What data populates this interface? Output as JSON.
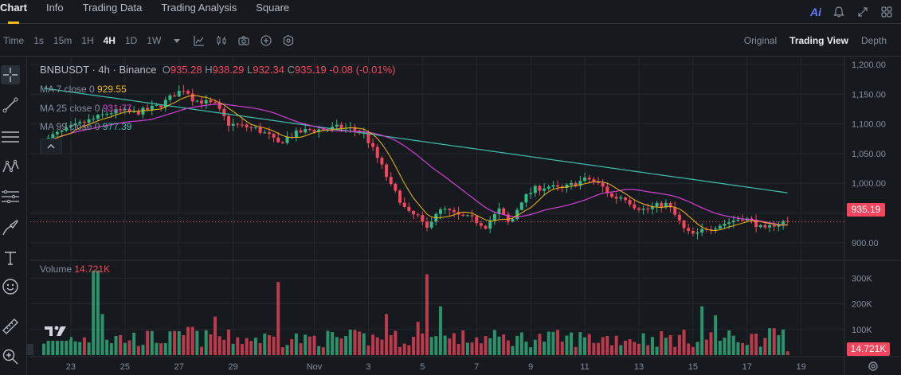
{
  "tabs": [
    "Chart",
    "Info",
    "Trading Data",
    "Trading Analysis",
    "Square"
  ],
  "active_tab": "Chart",
  "top_icons": {
    "ai_label": "Ai"
  },
  "toolbar": {
    "time_label": "Time",
    "intervals": [
      "1s",
      "15m",
      "1H",
      "4H",
      "1D",
      "1W"
    ],
    "active_interval": "4H",
    "views": [
      "Original",
      "Trading View",
      "Depth"
    ],
    "active_view": "Trading View"
  },
  "legend": {
    "symbol": "BNBUSDT · 4h · Binance",
    "open_key": "O",
    "open": "935.28",
    "high_key": "H",
    "high": "938.29",
    "low_key": "L",
    "low": "932.34",
    "close_key": "C",
    "close": "935.19",
    "change": "-0.08 (-0.01%)",
    "ma7_label": "MA 7 close 0",
    "ma7_value": "929.55",
    "ma25_label": "MA 25 close 0",
    "ma25_value": "931.77",
    "ma99_label": "MA 99 close 0",
    "ma99_value": "977.39",
    "volume_label": "Volume",
    "volume_value": "14.721K"
  },
  "colors": {
    "up": "#2ebd85",
    "down": "#f6465d",
    "ma7": "#f0b90b",
    "ma25": "#d63ed6",
    "ma99": "#3fbfb0",
    "grid": "#232830",
    "axis_text": "#848e9c"
  },
  "current_price_label": "935.19",
  "current_volume_label": "14.721K",
  "chart_data": {
    "type": "candlestick",
    "title": "BNBUSDT · 4h · Binance",
    "price_axis": {
      "ticks": [
        1200,
        1150,
        1100,
        1050,
        1000,
        950,
        900
      ],
      "tick_labels": [
        "1,200.00",
        "1,150.00",
        "1,100.00",
        "1,050.00",
        "1,000.00",
        "950.00",
        "900.00"
      ],
      "range": [
        873,
        1212
      ]
    },
    "volume_axis": {
      "ticks": [
        300000,
        200000,
        100000
      ],
      "tick_labels": [
        "300K",
        "200K",
        "100K"
      ],
      "range": [
        0,
        360000
      ]
    },
    "x_axis": {
      "labels": [
        "23",
        "25",
        "27",
        "29",
        "Nov",
        "3",
        "5",
        "7",
        "9",
        "11",
        "13",
        "15",
        "17",
        "19"
      ],
      "label_days": [
        -9,
        -7,
        -5,
        -3,
        0,
        2,
        4,
        6,
        8,
        10,
        12,
        14,
        16,
        18
      ],
      "range_days": [
        -10.5,
        19.6
      ]
    },
    "candles_per_day": 6,
    "first_candle_day": -10,
    "price_anchors": [
      [
        -10,
        1062
      ],
      [
        -9.5,
        1080
      ],
      [
        -9,
        1090
      ],
      [
        -8.5,
        1100
      ],
      [
        -8,
        1108
      ],
      [
        -7.5,
        1118
      ],
      [
        -7,
        1122
      ],
      [
        -6.5,
        1118
      ],
      [
        -6,
        1124
      ],
      [
        -5.5,
        1132
      ],
      [
        -5,
        1150
      ],
      [
        -4.6,
        1160
      ],
      [
        -4.3,
        1140
      ],
      [
        -4,
        1138
      ],
      [
        -3.5,
        1132
      ],
      [
        -3,
        1100
      ],
      [
        -2.5,
        1096
      ],
      [
        -2,
        1092
      ],
      [
        -1.5,
        1080
      ],
      [
        -1.2,
        1066
      ],
      [
        -0.8,
        1078
      ],
      [
        -0.4,
        1086
      ],
      [
        0,
        1090
      ],
      [
        0.5,
        1090
      ],
      [
        1,
        1094
      ],
      [
        1.5,
        1092
      ],
      [
        2,
        1084
      ],
      [
        2.3,
        1060
      ],
      [
        2.7,
        1025
      ],
      [
        3.0,
        995
      ],
      [
        3.3,
        975
      ],
      [
        3.6,
        950
      ],
      [
        4,
        944
      ],
      [
        4.3,
        920
      ],
      [
        4.6,
        950
      ],
      [
        5,
        955
      ],
      [
        5.5,
        945
      ],
      [
        6,
        940
      ],
      [
        6.5,
        928
      ],
      [
        7,
        955
      ],
      [
        7.4,
        930
      ],
      [
        7.8,
        970
      ],
      [
        8.3,
        990
      ],
      [
        8.8,
        995
      ],
      [
        9.3,
        990
      ],
      [
        9.8,
        1000
      ],
      [
        10.3,
        1008
      ],
      [
        10.8,
        995
      ],
      [
        11.2,
        975
      ],
      [
        11.6,
        978
      ],
      [
        12,
        962
      ],
      [
        12.4,
        955
      ],
      [
        12.8,
        962
      ],
      [
        13.2,
        965
      ],
      [
        13.6,
        940
      ],
      [
        13.9,
        918
      ],
      [
        14.3,
        912
      ],
      [
        14.6,
        925
      ],
      [
        15,
        928
      ],
      [
        15.5,
        935
      ],
      [
        16,
        942
      ],
      [
        16.4,
        935
      ],
      [
        16.8,
        920
      ],
      [
        17.2,
        932
      ],
      [
        17.5,
        935
      ]
    ],
    "volume_spikes": [
      [
        -8.1,
        330000
      ],
      [
        -7.8,
        160000
      ],
      [
        -4.6,
        110000
      ],
      [
        -3.7,
        150000
      ],
      [
        -1.3,
        285000
      ],
      [
        -0.4,
        80000
      ],
      [
        2.6,
        160000
      ],
      [
        3.8,
        130000
      ],
      [
        4.2,
        315000
      ],
      [
        4.6,
        190000
      ],
      [
        14.3,
        190000
      ],
      [
        14.8,
        155000
      ],
      [
        16.9,
        105000
      ]
    ],
    "ma_series": [
      "MA 7",
      "MA 25",
      "MA 99"
    ]
  }
}
